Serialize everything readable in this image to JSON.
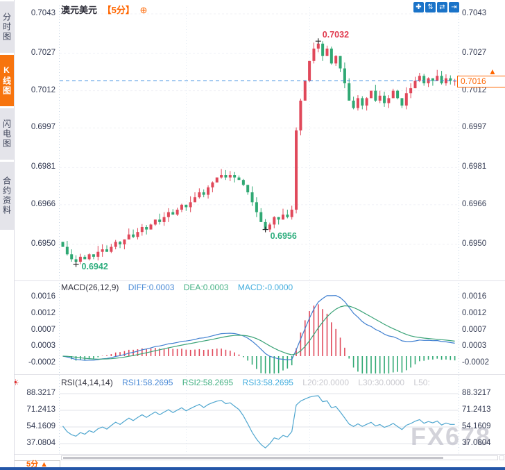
{
  "app": {
    "watermark": "FX678"
  },
  "sidebar": {
    "tabs": [
      {
        "id": "time-chart",
        "label": "分时图",
        "active": false
      },
      {
        "id": "kline-chart",
        "label": "K线图",
        "active": true
      },
      {
        "id": "flash-chart",
        "label": "闪电图",
        "active": false
      },
      {
        "id": "contract-info",
        "label": "合约资料",
        "active": false
      }
    ]
  },
  "header": {
    "symbol": "澳元美元",
    "period": "【5分】",
    "add_icon": "⊕"
  },
  "toolbar": {
    "icons": [
      {
        "name": "crosshair-move-icon",
        "glyph": "✚"
      },
      {
        "name": "zoom-vertical-icon",
        "glyph": "⇅"
      },
      {
        "name": "zoom-horizontal-icon",
        "glyph": "⇄"
      },
      {
        "name": "shift-right-icon",
        "glyph": "⇥"
      }
    ]
  },
  "price_marker": {
    "value": "0.7016",
    "arrow": "▲"
  },
  "footer": {
    "period": "5分",
    "arrow": "▲"
  },
  "indicator_icon": {
    "glyph": "☀"
  },
  "colors": {
    "up": "#e0485a",
    "down": "#2fa873",
    "accent_orange": "#ff6600",
    "dashed_line": "#3b8ce0",
    "diff_blue": "#3f7fd0",
    "dea_green": "#3aa377",
    "rsi_line": "#4fa6cf",
    "axis_text": "#333a52",
    "grey_label": "#c9c9cf",
    "active_tab": "#f7740e",
    "tool_blue": "#1a73c8"
  },
  "chart_data": {
    "type": "candlestick",
    "symbol": "澳元美元",
    "interval": "5分",
    "ylim": [
      0.695,
      0.7043
    ],
    "y_ticks": [
      "0.7043",
      "0.7027",
      "0.7012",
      "0.6997",
      "0.6981",
      "0.6966",
      "0.6950"
    ],
    "closes": [
      0.6949,
      0.6946,
      0.6944,
      0.6943,
      0.6945,
      0.6944,
      0.6946,
      0.6945,
      0.6947,
      0.6948,
      0.6947,
      0.6949,
      0.6951,
      0.695,
      0.6952,
      0.6954,
      0.6953,
      0.6955,
      0.6957,
      0.6956,
      0.6958,
      0.696,
      0.6959,
      0.6961,
      0.6963,
      0.6962,
      0.6964,
      0.6966,
      0.6965,
      0.6967,
      0.6969,
      0.6971,
      0.697,
      0.6973,
      0.6975,
      0.6977,
      0.6978,
      0.6977,
      0.6978,
      0.6977,
      0.6976,
      0.6974,
      0.6971,
      0.6967,
      0.6963,
      0.6959,
      0.6956,
      0.6958,
      0.6961,
      0.696,
      0.6962,
      0.6961,
      0.6964,
      0.6996,
      0.7008,
      0.7016,
      0.7024,
      0.7029,
      0.7031,
      0.7026,
      0.7029,
      0.7023,
      0.7026,
      0.7021,
      0.7015,
      0.7008,
      0.7005,
      0.7009,
      0.7006,
      0.7009,
      0.7012,
      0.7008,
      0.701,
      0.7007,
      0.7009,
      0.7012,
      0.7009,
      0.7006,
      0.7011,
      0.7013,
      0.7016,
      0.7018,
      0.7015,
      0.7017,
      0.7016,
      0.7018,
      0.7015,
      0.7017,
      0.7016,
      0.7016
    ],
    "current_price": "0.7016",
    "high_marker": {
      "index": 58,
      "value": 0.7032,
      "label": "0.7032"
    },
    "low_marker": {
      "index": 3,
      "value": 0.6942,
      "label": "0.6942"
    },
    "low2_marker": {
      "index": 46,
      "value": 0.6956,
      "label": "0.6956"
    },
    "macd": {
      "title": "MACD(26,12,9)",
      "diff": "DIFF:0.0003",
      "dea": "DEA:0.0003",
      "macd": "MACD:-0.0000",
      "params": [
        26,
        12,
        9
      ],
      "y_ticks": [
        "0.0016",
        "0.0012",
        "0.0007",
        "0.0003",
        "-0.0002"
      ]
    },
    "rsi": {
      "title": "RSI(14,14,14)",
      "rsi1": "RSI1:58.2695",
      "rsi2": "RSI2:58.2695",
      "rsi3": "RSI3:58.2695",
      "l20": "L20:20.0000",
      "l30": "L30:30.0000",
      "l50": "L50:",
      "params": [
        14,
        14,
        14
      ],
      "y_ticks": [
        "88.3217",
        "71.2413",
        "54.1609",
        "37.0804"
      ]
    }
  }
}
